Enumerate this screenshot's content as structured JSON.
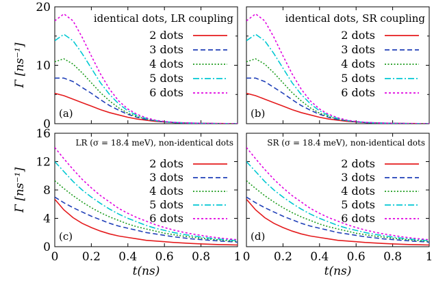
{
  "chart_data": [
    {
      "type": "line",
      "panel": "(a)",
      "title": "identical dots, LR coupling",
      "xlabel": "",
      "ylabel": "Γ [ns⁻¹]",
      "xlim": [
        0,
        1
      ],
      "ylim": [
        0,
        20
      ],
      "xticks": [],
      "yticks": [
        "0",
        "10",
        "20"
      ],
      "x": [
        0,
        0.05,
        0.1,
        0.15,
        0.2,
        0.25,
        0.3,
        0.35,
        0.4,
        0.45,
        0.5,
        0.55,
        0.6,
        0.65,
        0.7,
        0.75,
        0.8,
        0.85,
        0.9,
        0.95,
        1.0
      ],
      "series": [
        {
          "name": "2 dots",
          "color": "#e41a1c",
          "dash": "solid",
          "values": [
            5.2,
            4.8,
            4.2,
            3.6,
            3.0,
            2.4,
            1.9,
            1.5,
            1.1,
            0.8,
            0.6,
            0.4,
            0.3,
            0.2,
            0.15,
            0.1,
            0.07,
            0.05,
            0.03,
            0.02,
            0.0
          ]
        },
        {
          "name": "3 dots",
          "color": "#1f3fb8",
          "dash": "long",
          "values": [
            7.8,
            7.8,
            7.2,
            6.2,
            5.2,
            4.1,
            3.1,
            2.3,
            1.6,
            1.1,
            0.7,
            0.5,
            0.3,
            0.2,
            0.12,
            0.08,
            0.05,
            0.03,
            0.02,
            0.01,
            0.0
          ]
        },
        {
          "name": "4 dots",
          "color": "#1a9a1a",
          "dash": "dot",
          "values": [
            10.6,
            11.1,
            10.2,
            8.7,
            7.0,
            5.3,
            3.9,
            2.7,
            1.8,
            1.2,
            0.8,
            0.5,
            0.3,
            0.2,
            0.12,
            0.08,
            0.05,
            0.03,
            0.02,
            0.01,
            0.0
          ]
        },
        {
          "name": "5 dots",
          "color": "#00c8d2",
          "dash": "dashdot",
          "values": [
            14.2,
            15.3,
            14.2,
            12.0,
            9.5,
            7.0,
            5.0,
            3.4,
            2.2,
            1.4,
            0.9,
            0.55,
            0.35,
            0.22,
            0.14,
            0.09,
            0.05,
            0.03,
            0.02,
            0.01,
            0.0
          ]
        },
        {
          "name": "6 dots",
          "color": "#e000e0",
          "dash": "short",
          "values": [
            17.6,
            18.8,
            17.6,
            14.8,
            11.6,
            8.5,
            5.9,
            3.9,
            2.5,
            1.6,
            1.0,
            0.6,
            0.38,
            0.23,
            0.14,
            0.09,
            0.05,
            0.03,
            0.02,
            0.01,
            0.0
          ]
        }
      ]
    },
    {
      "type": "line",
      "panel": "(b)",
      "title": "identical dots, SR coupling",
      "xlabel": "",
      "ylabel": "",
      "xlim": [
        0,
        1
      ],
      "ylim": [
        0,
        20
      ],
      "xticks": [],
      "yticks": [],
      "x": [
        0,
        0.05,
        0.1,
        0.15,
        0.2,
        0.25,
        0.3,
        0.35,
        0.4,
        0.45,
        0.5,
        0.55,
        0.6,
        0.65,
        0.7,
        0.75,
        0.8,
        0.85,
        0.9,
        0.95,
        1.0
      ],
      "series": [
        {
          "name": "2 dots",
          "color": "#e41a1c",
          "dash": "solid",
          "values": [
            5.2,
            4.8,
            4.2,
            3.6,
            3.0,
            2.4,
            1.9,
            1.5,
            1.1,
            0.8,
            0.6,
            0.4,
            0.3,
            0.2,
            0.15,
            0.1,
            0.07,
            0.05,
            0.03,
            0.02,
            0.0
          ]
        },
        {
          "name": "3 dots",
          "color": "#1f3fb8",
          "dash": "long",
          "values": [
            7.8,
            7.8,
            7.2,
            6.2,
            5.2,
            4.1,
            3.1,
            2.3,
            1.6,
            1.1,
            0.7,
            0.5,
            0.3,
            0.2,
            0.12,
            0.08,
            0.05,
            0.03,
            0.02,
            0.01,
            0.0
          ]
        },
        {
          "name": "4 dots",
          "color": "#1a9a1a",
          "dash": "dot",
          "values": [
            10.6,
            11.1,
            10.2,
            8.7,
            7.0,
            5.3,
            3.9,
            2.7,
            1.8,
            1.2,
            0.8,
            0.5,
            0.3,
            0.2,
            0.12,
            0.08,
            0.05,
            0.03,
            0.02,
            0.01,
            0.0
          ]
        },
        {
          "name": "5 dots",
          "color": "#00c8d2",
          "dash": "dashdot",
          "values": [
            14.2,
            15.3,
            14.2,
            12.0,
            9.5,
            7.0,
            5.0,
            3.4,
            2.2,
            1.4,
            0.9,
            0.55,
            0.35,
            0.22,
            0.14,
            0.09,
            0.05,
            0.03,
            0.02,
            0.01,
            0.0
          ]
        },
        {
          "name": "6 dots",
          "color": "#e000e0",
          "dash": "short",
          "values": [
            17.6,
            18.8,
            17.6,
            14.8,
            11.6,
            8.5,
            5.9,
            3.9,
            2.5,
            1.6,
            1.0,
            0.6,
            0.38,
            0.23,
            0.14,
            0.09,
            0.05,
            0.03,
            0.02,
            0.01,
            0.0
          ]
        }
      ]
    },
    {
      "type": "line",
      "panel": "(c)",
      "title": "LR (σ = 18.4 meV), non-identical dots",
      "xlabel": "t(ns)",
      "ylabel": "Γ [ns⁻¹]",
      "xlim": [
        0,
        1
      ],
      "ylim": [
        0,
        16
      ],
      "xticks": [
        "0",
        "0.2",
        "0.4",
        "0.6",
        "0.8",
        "1"
      ],
      "yticks": [
        "0",
        "4",
        "8",
        "12",
        "16"
      ],
      "x": [
        0,
        0.05,
        0.1,
        0.15,
        0.2,
        0.25,
        0.3,
        0.35,
        0.4,
        0.45,
        0.5,
        0.55,
        0.6,
        0.65,
        0.7,
        0.75,
        0.8,
        0.85,
        0.9,
        0.95,
        1.0
      ],
      "series": [
        {
          "name": "2 dots",
          "color": "#e41a1c",
          "dash": "solid",
          "values": [
            6.7,
            5.2,
            4.1,
            3.3,
            2.7,
            2.2,
            1.8,
            1.5,
            1.3,
            1.1,
            0.9,
            0.8,
            0.7,
            0.6,
            0.52,
            0.45,
            0.4,
            0.35,
            0.3,
            0.27,
            0.24
          ]
        },
        {
          "name": "3 dots",
          "color": "#1f3fb8",
          "dash": "long",
          "values": [
            7.0,
            6.2,
            5.5,
            4.9,
            4.3,
            3.8,
            3.3,
            2.9,
            2.6,
            2.3,
            2.0,
            1.8,
            1.6,
            1.4,
            1.25,
            1.1,
            1.0,
            0.9,
            0.8,
            0.72,
            0.65
          ]
        },
        {
          "name": "4 dots",
          "color": "#1a9a1a",
          "dash": "dot",
          "values": [
            9.3,
            8.2,
            7.2,
            6.3,
            5.5,
            4.8,
            4.2,
            3.7,
            3.2,
            2.8,
            2.5,
            2.2,
            1.9,
            1.7,
            1.5,
            1.35,
            1.2,
            1.07,
            0.95,
            0.85,
            0.76
          ]
        },
        {
          "name": "5 dots",
          "color": "#00c8d2",
          "dash": "dashdot",
          "values": [
            12.0,
            10.6,
            9.2,
            8.0,
            7.0,
            6.1,
            5.3,
            4.6,
            4.0,
            3.5,
            3.0,
            2.6,
            2.3,
            2.0,
            1.75,
            1.55,
            1.37,
            1.2,
            1.07,
            0.95,
            0.85
          ]
        },
        {
          "name": "6 dots",
          "color": "#e000e0",
          "dash": "short",
          "values": [
            14.0,
            12.4,
            10.9,
            9.5,
            8.3,
            7.2,
            6.3,
            5.4,
            4.7,
            4.1,
            3.6,
            3.1,
            2.7,
            2.35,
            2.05,
            1.8,
            1.6,
            1.4,
            1.23,
            1.1,
            0.98
          ]
        }
      ]
    },
    {
      "type": "line",
      "panel": "(d)",
      "title": "SR (σ = 18.4 meV), non-identical dots",
      "xlabel": "t(ns)",
      "ylabel": "",
      "xlim": [
        0,
        1
      ],
      "ylim": [
        0,
        16
      ],
      "xticks": [
        "0",
        "0.2",
        "0.4",
        "0.6",
        "0.8",
        "1"
      ],
      "yticks": [],
      "x": [
        0,
        0.05,
        0.1,
        0.15,
        0.2,
        0.25,
        0.3,
        0.35,
        0.4,
        0.45,
        0.5,
        0.55,
        0.6,
        0.65,
        0.7,
        0.75,
        0.8,
        0.85,
        0.9,
        0.95,
        1.0
      ],
      "series": [
        {
          "name": "2 dots",
          "color": "#e41a1c",
          "dash": "solid",
          "values": [
            6.7,
            5.2,
            4.1,
            3.3,
            2.7,
            2.2,
            1.8,
            1.5,
            1.3,
            1.1,
            0.9,
            0.8,
            0.7,
            0.6,
            0.52,
            0.45,
            0.4,
            0.35,
            0.3,
            0.27,
            0.24
          ]
        },
        {
          "name": "3 dots",
          "color": "#1f3fb8",
          "dash": "long",
          "values": [
            7.0,
            6.2,
            5.5,
            4.9,
            4.3,
            3.8,
            3.3,
            2.9,
            2.6,
            2.3,
            2.0,
            1.8,
            1.6,
            1.4,
            1.25,
            1.1,
            1.0,
            0.9,
            0.8,
            0.72,
            0.65
          ]
        },
        {
          "name": "4 dots",
          "color": "#1a9a1a",
          "dash": "dot",
          "values": [
            9.3,
            8.2,
            7.2,
            6.3,
            5.5,
            4.8,
            4.2,
            3.7,
            3.2,
            2.8,
            2.5,
            2.2,
            1.9,
            1.7,
            1.5,
            1.35,
            1.2,
            1.07,
            0.95,
            0.85,
            0.76
          ]
        },
        {
          "name": "5 dots",
          "color": "#00c8d2",
          "dash": "dashdot",
          "values": [
            12.0,
            10.6,
            9.2,
            8.0,
            7.0,
            6.1,
            5.3,
            4.6,
            4.0,
            3.5,
            3.0,
            2.6,
            2.3,
            2.0,
            1.75,
            1.55,
            1.37,
            1.2,
            1.07,
            0.95,
            0.85
          ]
        },
        {
          "name": "6 dots",
          "color": "#e000e0",
          "dash": "short",
          "values": [
            14.0,
            12.4,
            10.9,
            9.5,
            8.3,
            7.2,
            6.3,
            5.4,
            4.7,
            4.1,
            3.6,
            3.1,
            2.7,
            2.35,
            2.05,
            1.8,
            1.6,
            1.4,
            1.23,
            1.1,
            0.98
          ]
        }
      ]
    }
  ]
}
